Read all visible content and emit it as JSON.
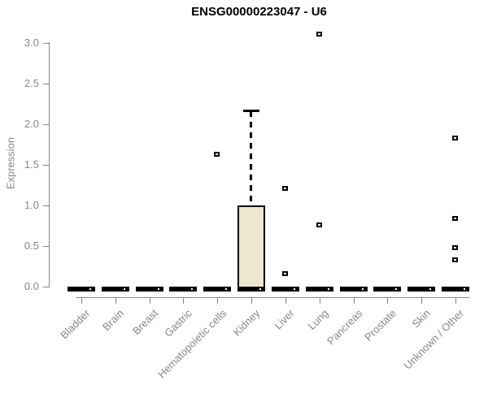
{
  "page": {
    "background": "#ffffff"
  },
  "chart_data": {
    "type": "boxplot",
    "title": "ENSG00000223047 - U6",
    "ylabel": "Expression",
    "xlabel": "",
    "ylim": [
      0,
      3.1
    ],
    "ytick_values": [
      0,
      0.5,
      1,
      1.5,
      2,
      2.5,
      3
    ],
    "ytick_labels": [
      "0.0",
      "0.5",
      "1.0",
      "1.5",
      "2.0",
      "2.5",
      "3.0"
    ],
    "categories": [
      "Bladder",
      "Brain",
      "Breast",
      "Gastric",
      "Hematopoietic cells",
      "Kidney",
      "Liver",
      "Lung",
      "Pancreas",
      "Prostate",
      "Skin",
      "Unknown / Other"
    ],
    "series": [
      {
        "category": "Bladder",
        "q1": 0,
        "median": 0,
        "q3": 0,
        "whisker_low": 0,
        "whisker_high": 0,
        "outliers": []
      },
      {
        "category": "Brain",
        "q1": 0,
        "median": 0,
        "q3": 0,
        "whisker_low": 0,
        "whisker_high": 0,
        "outliers": []
      },
      {
        "category": "Breast",
        "q1": 0,
        "median": 0,
        "q3": 0,
        "whisker_low": 0,
        "whisker_high": 0,
        "outliers": []
      },
      {
        "category": "Gastric",
        "q1": 0,
        "median": 0,
        "q3": 0,
        "whisker_low": 0,
        "whisker_high": 0,
        "outliers": []
      },
      {
        "category": "Hematopoietic cells",
        "q1": 0,
        "median": 0,
        "q3": 0,
        "whisker_low": 0,
        "whisker_high": 0,
        "outliers": [
          1.63
        ]
      },
      {
        "category": "Kidney",
        "q1": 0,
        "median": 0,
        "q3": 1.0,
        "whisker_low": 0,
        "whisker_high": 2.16,
        "outliers": []
      },
      {
        "category": "Liver",
        "q1": 0,
        "median": 0,
        "q3": 0,
        "whisker_low": 0,
        "whisker_high": 0,
        "outliers": [
          1.21,
          0.16
        ]
      },
      {
        "category": "Lung",
        "q1": 0,
        "median": 0,
        "q3": 0,
        "whisker_low": 0,
        "whisker_high": 0,
        "outliers": [
          3.11,
          0.76
        ]
      },
      {
        "category": "Pancreas",
        "q1": 0,
        "median": 0,
        "q3": 0,
        "whisker_low": 0,
        "whisker_high": 0,
        "outliers": []
      },
      {
        "category": "Prostate",
        "q1": 0,
        "median": 0,
        "q3": 0,
        "whisker_low": 0,
        "whisker_high": 0,
        "outliers": []
      },
      {
        "category": "Skin",
        "q1": 0,
        "median": 0,
        "q3": 0,
        "whisker_low": 0,
        "whisker_high": 0,
        "outliers": []
      },
      {
        "category": "Unknown / Other",
        "q1": 0,
        "median": 0,
        "q3": 0,
        "whisker_low": 0,
        "whisker_high": 0,
        "outliers": [
          1.83,
          0.84,
          0.48,
          0.33
        ]
      }
    ],
    "grid": false,
    "legend": null,
    "colors": {
      "box_fill": "#ECE7CF",
      "box_stroke": "#000000",
      "axis": "#888888",
      "tick_label": "#888888",
      "title": "#000000",
      "outlier": "#000000"
    }
  }
}
